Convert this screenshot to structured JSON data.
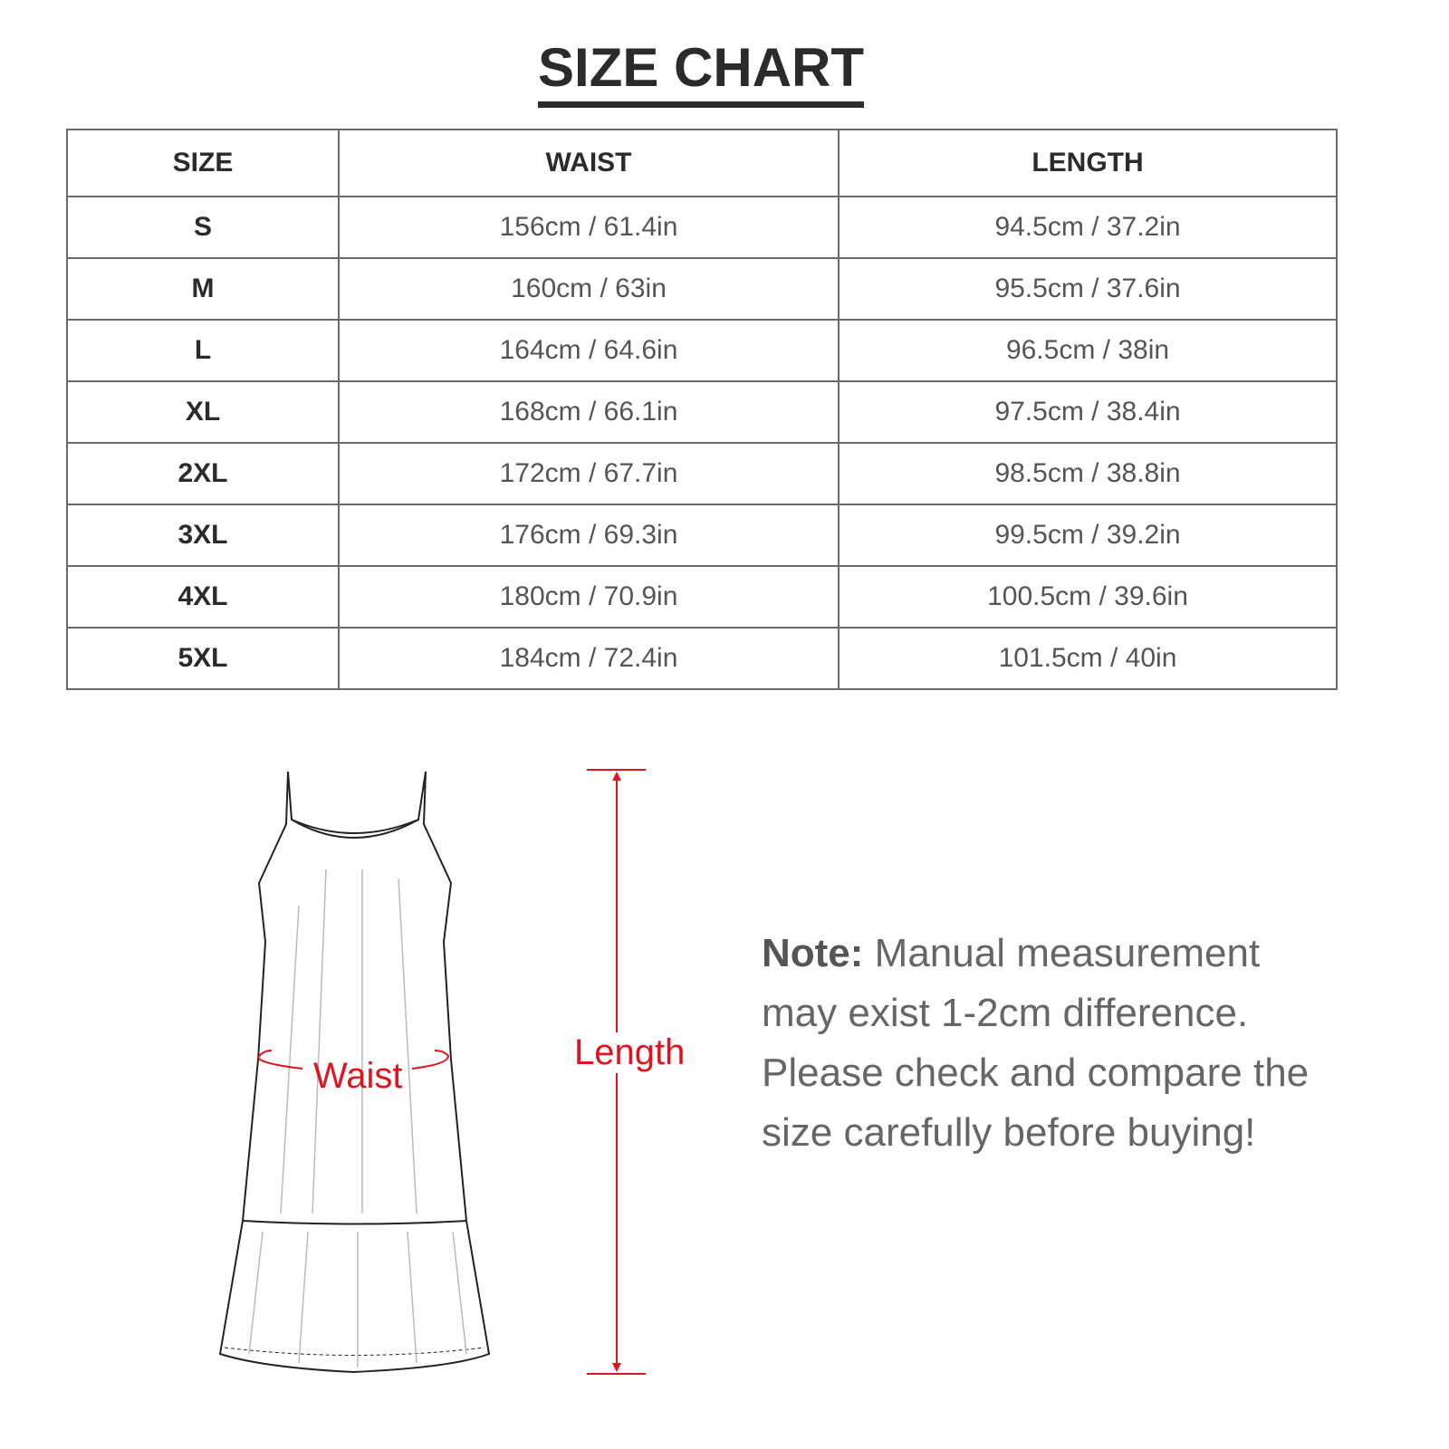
{
  "title": "SIZE CHART",
  "table": {
    "headers": [
      "SIZE",
      "WAIST",
      "LENGTH"
    ],
    "rows": [
      [
        "S",
        "156cm / 61.4in",
        "94.5cm / 37.2in"
      ],
      [
        "M",
        "160cm / 63in",
        "95.5cm / 37.6in"
      ],
      [
        "L",
        "164cm / 64.6in",
        "96.5cm / 38in"
      ],
      [
        "XL",
        "168cm / 66.1in",
        "97.5cm / 38.4in"
      ],
      [
        "2XL",
        "172cm / 67.7in",
        "98.5cm / 38.8in"
      ],
      [
        "3XL",
        "176cm / 69.3in",
        "99.5cm / 39.2in"
      ],
      [
        "4XL",
        "180cm / 70.9in",
        "100.5cm / 39.6in"
      ],
      [
        "5XL",
        "184cm / 72.4in",
        "101.5cm / 40in"
      ]
    ]
  },
  "diagram": {
    "waist_label": "Waist",
    "length_label": "Length",
    "accent_color": "#e0141e"
  },
  "note": {
    "label": "Note:",
    "text": "Manual measurement may exist 1-2cm difference. Please check and compare the size carefully before buying!"
  }
}
